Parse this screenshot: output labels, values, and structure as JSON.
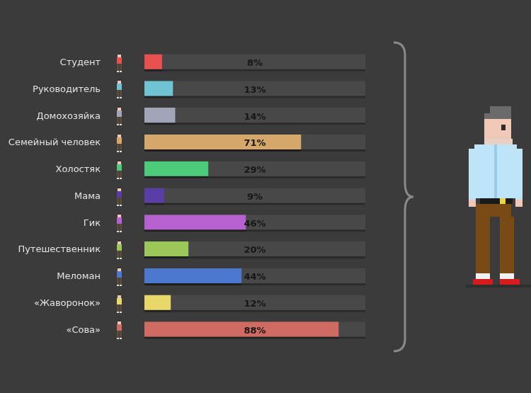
{
  "chart_data": {
    "type": "bar",
    "orientation": "horizontal",
    "categories": [
      "Студент",
      "Руководитель",
      "Домохозяйка",
      "Семейный человек",
      "Холостяк",
      "Мама",
      "Гик",
      "Путешественник",
      "Меломан",
      "«Жаворонок»",
      "«Сова»"
    ],
    "values": [
      8,
      13,
      14,
      71,
      29,
      9,
      46,
      20,
      44,
      12,
      88
    ],
    "value_labels": [
      "8%",
      "13%",
      "14%",
      "71%",
      "29%",
      "9%",
      "46%",
      "20%",
      "44%",
      "12%",
      "88%"
    ],
    "colors": [
      "#e8504f",
      "#6fc3d3",
      "#a0a6b8",
      "#d6a76a",
      "#4ccb7b",
      "#5a3ea8",
      "#b761d0",
      "#9cc85a",
      "#4d78d0",
      "#e8d86a",
      "#cf6b63"
    ],
    "xlim": [
      0,
      100
    ],
    "xticks": [
      0,
      100
    ],
    "grid": false,
    "tick_labels": "y",
    "data_labels": true
  }
}
